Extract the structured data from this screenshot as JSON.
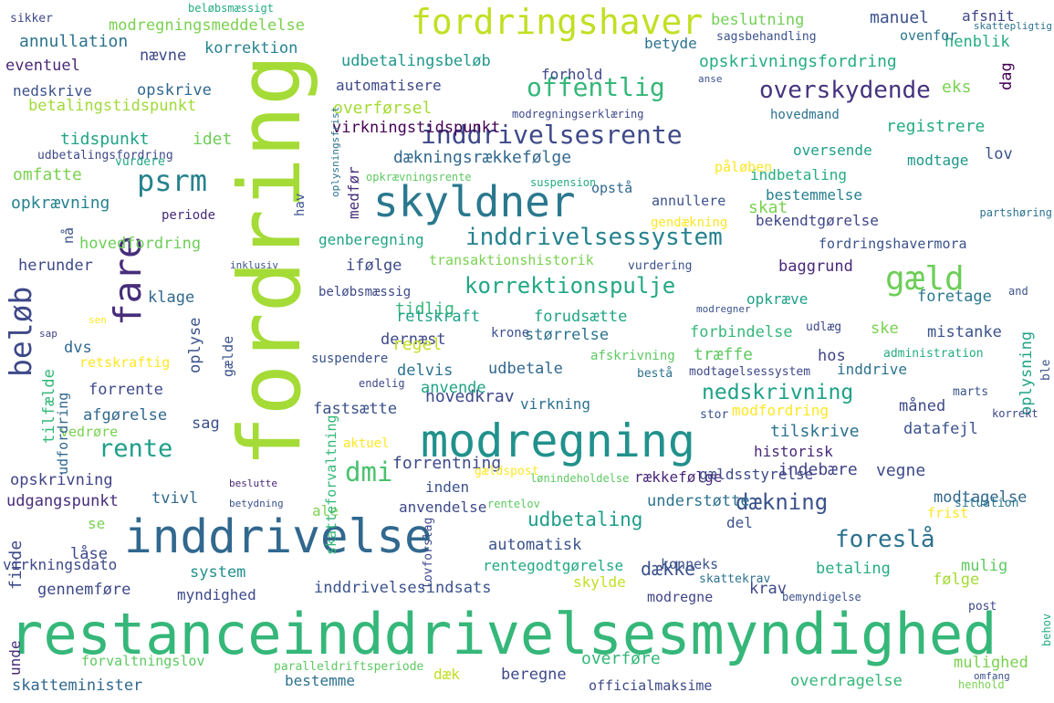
{
  "words": [
    {
      "text": "restanceinddrivelsesmyndighed",
      "color": "#35b779"
    },
    {
      "text": "fordring",
      "color": "#a5db36"
    },
    {
      "text": "inddrivelse",
      "color": "#31688e"
    },
    {
      "text": "modregning",
      "color": "#21918c"
    },
    {
      "text": "skyldner",
      "color": "#2a788e"
    },
    {
      "text": "fordringshaver",
      "color": "#c2df23"
    },
    {
      "text": "inddrivelsessystem",
      "color": "#26828e"
    },
    {
      "text": "inddrivelsesrente",
      "color": "#3e4989"
    },
    {
      "text": "overskydende",
      "color": "#46337e"
    },
    {
      "text": "offentlig",
      "color": "#35b779"
    },
    {
      "text": "psrm",
      "color": "#26828e"
    },
    {
      "text": "gæld",
      "color": "#6ece58"
    },
    {
      "text": "korrektionspulje",
      "color": "#22a884"
    },
    {
      "text": "rente",
      "color": "#1f9e89"
    },
    {
      "text": "beløb",
      "color": "#3e4989"
    },
    {
      "text": "fare",
      "color": "#472d7b"
    },
    {
      "text": "dmi",
      "color": "#4ac16d"
    },
    {
      "text": "foreslå",
      "color": "#2c728e"
    },
    {
      "text": "dækning",
      "color": "#3b528b"
    },
    {
      "text": "nedskrivning",
      "color": "#1fa188"
    },
    {
      "text": "udbetaling",
      "color": "#1f9e89"
    },
    {
      "text": "dækningsrækkefølge",
      "color": "#31688e"
    },
    {
      "text": "virkningstidspunkt",
      "color": "#440154"
    },
    {
      "text": "genberegning",
      "color": "#20a486"
    },
    {
      "text": "fordringshavermora",
      "color": "#3b528b"
    },
    {
      "text": "hovedfordring",
      "color": "#6ece58"
    },
    {
      "text": "opskrivningsfordring",
      "color": "#25ac82"
    },
    {
      "text": "udbetalingsbeløb",
      "color": "#1f988b"
    },
    {
      "text": "modregningsmeddelelse",
      "color": "#7ad151"
    },
    {
      "text": "betalingstidspunkt",
      "color": "#a0da39"
    },
    {
      "text": "automatisere",
      "color": "#3e4989"
    },
    {
      "text": "overførsel",
      "color": "#a5db36"
    },
    {
      "text": "tidspunkt",
      "color": "#20a486"
    },
    {
      "text": "idet",
      "color": "#6ece58"
    },
    {
      "text": "registrere",
      "color": "#25ac82"
    },
    {
      "text": "oversende",
      "color": "#1fa188"
    },
    {
      "text": "modtage",
      "color": "#1f988b"
    },
    {
      "text": "indbetaling",
      "color": "#25ac82"
    },
    {
      "text": "bestemmelse",
      "color": "#277f8e"
    },
    {
      "text": "bekendtgørelse",
      "color": "#404688"
    },
    {
      "text": "annullere",
      "color": "#3b528b"
    },
    {
      "text": "opstå",
      "color": "#31688e"
    },
    {
      "text": "skat",
      "color": "#7ad151"
    },
    {
      "text": "opkrævning",
      "color": "#26828e"
    },
    {
      "text": "omfatte",
      "color": "#7ad151"
    },
    {
      "text": "eventuel",
      "color": "#482878"
    },
    {
      "text": "nedskrive",
      "color": "#3b528b"
    },
    {
      "text": "opskrive",
      "color": "#31688e"
    },
    {
      "text": "annullation",
      "color": "#2c728e"
    },
    {
      "text": "korrektion",
      "color": "#26828e"
    },
    {
      "text": "nævne",
      "color": "#3e4989"
    },
    {
      "text": "forhold",
      "color": "#3e4989"
    },
    {
      "text": "betyde",
      "color": "#2c728e"
    },
    {
      "text": "henblik",
      "color": "#25ac82"
    },
    {
      "text": "beslutning",
      "color": "#73d056"
    },
    {
      "text": "manuel",
      "color": "#3b528b"
    },
    {
      "text": "ovenfor",
      "color": "#2a788e"
    },
    {
      "text": "sagsbehandling",
      "color": "#3b528b"
    },
    {
      "text": "afsnit",
      "color": "#414487"
    },
    {
      "text": "eks",
      "color": "#7ad151"
    },
    {
      "text": "dag",
      "color": "#440154"
    },
    {
      "text": "hovedmand",
      "color": "#2c728e"
    },
    {
      "text": "lov",
      "color": "#3b528b"
    },
    {
      "text": "periode",
      "color": "#482878"
    },
    {
      "text": "nå",
      "color": "#3b528b"
    },
    {
      "text": "herunder",
      "color": "#3e4989"
    },
    {
      "text": "klage",
      "color": "#31688e"
    },
    {
      "text": "ifølge",
      "color": "#3e4989"
    },
    {
      "text": "transaktionshistorik",
      "color": "#7ad151"
    },
    {
      "text": "baggrund",
      "color": "#482878"
    },
    {
      "text": "foretage",
      "color": "#2a788e"
    },
    {
      "text": "opkræve",
      "color": "#1fa188"
    },
    {
      "text": "tidlig",
      "color": "#35b779"
    },
    {
      "text": "retskraft",
      "color": "#1fa188"
    },
    {
      "text": "forudsætte",
      "color": "#20a486"
    },
    {
      "text": "dernæst",
      "color": "#3e4989"
    },
    {
      "text": "forbindelse",
      "color": "#35b779"
    },
    {
      "text": "ske",
      "color": "#7ad151"
    },
    {
      "text": "mistanke",
      "color": "#3b528b"
    },
    {
      "text": "regel",
      "color": "#c2df23"
    },
    {
      "text": "størrelse",
      "color": "#2c728e"
    },
    {
      "text": "træffe",
      "color": "#5ec962"
    },
    {
      "text": "hos",
      "color": "#414487"
    },
    {
      "text": "delvis",
      "color": "#2c728e"
    },
    {
      "text": "udbetale",
      "color": "#31688e"
    },
    {
      "text": "inddrive",
      "color": "#2c728e"
    },
    {
      "text": "oplysning",
      "color": "#20a486"
    },
    {
      "text": "dvs",
      "color": "#31688e"
    },
    {
      "text": "oplyse",
      "color": "#3b528b"
    },
    {
      "text": "retskraftig",
      "color": "#fde725"
    },
    {
      "text": "forrente",
      "color": "#3e4989"
    },
    {
      "text": "afgørelse",
      "color": "#31688e"
    },
    {
      "text": "sag",
      "color": "#3b528b"
    },
    {
      "text": "vedrøre",
      "color": "#7ad151"
    },
    {
      "text": "tilfælde",
      "color": "#35b779"
    },
    {
      "text": "udfordring",
      "color": "#31688e"
    },
    {
      "text": "gælde",
      "color": "#3b528b"
    },
    {
      "text": "hovedkrav",
      "color": "#3e4989"
    },
    {
      "text": "anvende",
      "color": "#20a486"
    },
    {
      "text": "fastsætte",
      "color": "#3b528b"
    },
    {
      "text": "virkning",
      "color": "#2c728e"
    },
    {
      "text": "måned",
      "color": "#3e4989"
    },
    {
      "text": "modfordring",
      "color": "#fde725"
    },
    {
      "text": "tilskrive",
      "color": "#2c728e"
    },
    {
      "text": "datafejl",
      "color": "#3b528b"
    },
    {
      "text": "historisk",
      "color": "#482878"
    },
    {
      "text": "aktuel",
      "color": "#fde725"
    },
    {
      "text": "forrentning",
      "color": "#3e4989"
    },
    {
      "text": "rækkefølge",
      "color": "#482878"
    },
    {
      "text": "gældsstyrelse",
      "color": "#3e4989"
    },
    {
      "text": "vegne",
      "color": "#3e4989"
    },
    {
      "text": "indebære",
      "color": "#414487"
    },
    {
      "text": "opskrivning",
      "color": "#414487"
    },
    {
      "text": "udgangspunkt",
      "color": "#472d7b"
    },
    {
      "text": "tvivl",
      "color": "#31688e"
    },
    {
      "text": "inden",
      "color": "#3b528b"
    },
    {
      "text": "ale",
      "color": "#7ad151"
    },
    {
      "text": "anvendelse",
      "color": "#3e4989"
    },
    {
      "text": "understøtte",
      "color": "#2c728e"
    },
    {
      "text": "modtagelse",
      "color": "#31688e"
    },
    {
      "text": "frist",
      "color": "#fde725"
    },
    {
      "text": "del",
      "color": "#3b528b"
    },
    {
      "text": "se",
      "color": "#7ad151"
    },
    {
      "text": "finde",
      "color": "#3e4989"
    },
    {
      "text": "låse",
      "color": "#3e4989"
    },
    {
      "text": "virkningsdato",
      "color": "#3e4989"
    },
    {
      "text": "system",
      "color": "#21918c"
    },
    {
      "text": "automatisk",
      "color": "#3b528b"
    },
    {
      "text": "rentegodtgørelse",
      "color": "#22a884"
    },
    {
      "text": "dække",
      "color": "#3b528b"
    },
    {
      "text": "konneks",
      "color": "#3b528b"
    },
    {
      "text": "betaling",
      "color": "#25ac82"
    },
    {
      "text": "mulig",
      "color": "#5ec962"
    },
    {
      "text": "følge",
      "color": "#a5db36"
    },
    {
      "text": "gennemføre",
      "color": "#3e4989"
    },
    {
      "text": "myndighed",
      "color": "#3e4989"
    },
    {
      "text": "inddrivelsesindsats",
      "color": "#3b528b"
    },
    {
      "text": "skylde",
      "color": "#c2df23"
    },
    {
      "text": "krav",
      "color": "#3e4989"
    },
    {
      "text": "modregne",
      "color": "#414487"
    },
    {
      "text": "unde",
      "color": "#472d7b"
    },
    {
      "text": "forvaltningslov",
      "color": "#5ec962"
    },
    {
      "text": "overføre",
      "color": "#35b779"
    },
    {
      "text": "mulighed",
      "color": "#7ad151"
    },
    {
      "text": "dæk",
      "color": "#c2df23"
    },
    {
      "text": "beregne",
      "color": "#3e4989"
    },
    {
      "text": "officialmaksime",
      "color": "#3e4989"
    },
    {
      "text": "overdragelse",
      "color": "#35b779"
    },
    {
      "text": "skatteminister",
      "color": "#31688e"
    },
    {
      "text": "bestemme",
      "color": "#2c728e"
    },
    {
      "text": "skatteforvaltning",
      "color": "#35b779"
    },
    {
      "text": "medfør",
      "color": "#472d7b"
    },
    {
      "text": "påløben",
      "color": "#fde725"
    },
    {
      "text": "hav",
      "color": "#3b528b"
    },
    {
      "text": "gendækning",
      "color": "#fde725"
    },
    {
      "text": "vurdering",
      "color": "#3b528b"
    },
    {
      "text": "beløbsmæssig",
      "color": "#3e4989"
    },
    {
      "text": "krone",
      "color": "#3b528b"
    },
    {
      "text": "udlæg",
      "color": "#3e4989"
    },
    {
      "text": "administration",
      "color": "#25ac82"
    },
    {
      "text": "suspendere",
      "color": "#3b528b"
    },
    {
      "text": "afskrivning",
      "color": "#5ec962"
    },
    {
      "text": "bestå",
      "color": "#2c728e"
    },
    {
      "text": "modtagelsessystem",
      "color": "#3e4989"
    },
    {
      "text": "endelig",
      "color": "#3e4989"
    },
    {
      "text": "marts",
      "color": "#3b528b"
    },
    {
      "text": "stor",
      "color": "#3b528b"
    },
    {
      "text": "gældspost",
      "color": "#fde725"
    },
    {
      "text": "lønindeholdelse",
      "color": "#5ec962"
    },
    {
      "text": "rentelov",
      "color": "#5ec962"
    },
    {
      "text": "situation",
      "color": "#2a788e"
    },
    {
      "text": "beslutte",
      "color": "#482878"
    },
    {
      "text": "betydning",
      "color": "#3b528b"
    },
    {
      "text": "skattekrav",
      "color": "#2c728e"
    },
    {
      "text": "bemyndigelse",
      "color": "#3b528b"
    },
    {
      "text": "post",
      "color": "#3e4989"
    },
    {
      "text": "henhold",
      "color": "#7ad151"
    },
    {
      "text": "paralleldriftsperiode",
      "color": "#5ec962"
    },
    {
      "text": "lovforslag",
      "color": "#3e4989"
    },
    {
      "text": "omfang",
      "color": "#3b528b"
    },
    {
      "text": "behov",
      "color": "#25ac82"
    },
    {
      "text": "beløbsmæssigt",
      "color": "#25ac82"
    },
    {
      "text": "sikker",
      "color": "#3e4989"
    },
    {
      "text": "skattepligtig",
      "color": "#2c728e"
    },
    {
      "text": "anse",
      "color": "#3b528b"
    },
    {
      "text": "modregningserklæring",
      "color": "#3e4989"
    },
    {
      "text": "udbetalingsfordring",
      "color": "#3e4989"
    },
    {
      "text": "vurdere",
      "color": "#22a884"
    },
    {
      "text": "opkrævningsrente",
      "color": "#5ec962"
    },
    {
      "text": "oplysningsfrist",
      "color": "#2c728e"
    },
    {
      "text": "suspension",
      "color": "#25ac82"
    },
    {
      "text": "partshøring",
      "color": "#2c728e"
    },
    {
      "text": "inklusiv",
      "color": "#3b528b"
    },
    {
      "text": "sen",
      "color": "#fde725"
    },
    {
      "text": "sap",
      "color": "#414487"
    },
    {
      "text": "modregner",
      "color": "#3b528b"
    },
    {
      "text": "and",
      "color": "#3b528b"
    },
    {
      "text": "ble",
      "color": "#3b528b"
    },
    {
      "text": "korrekt",
      "color": "#3e4989"
    },
    {
      "text": "al",
      "color": "#3b528b"
    }
  ]
}
